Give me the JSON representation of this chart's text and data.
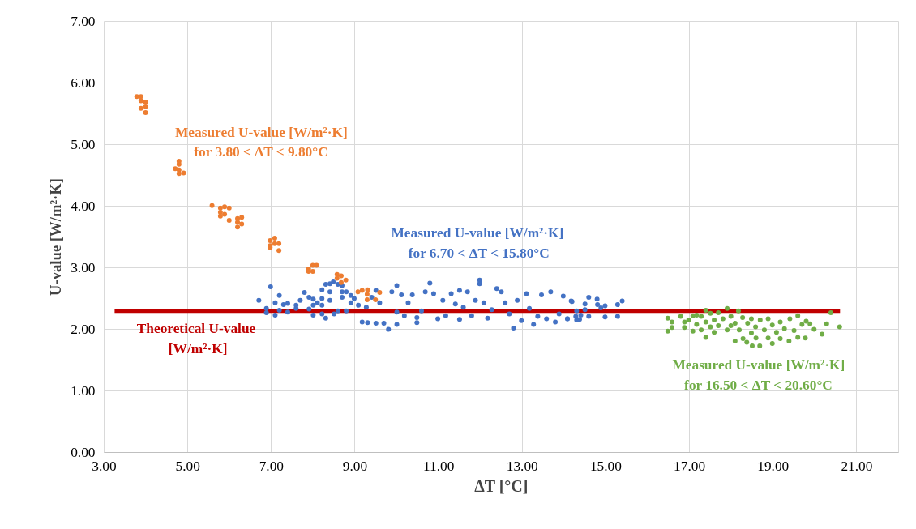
{
  "chart_data": {
    "type": "scatter",
    "xlabel": "ΔT [°C]",
    "ylabel": "U-value [W/m²·K]",
    "xlim": [
      3,
      22
    ],
    "ylim": [
      0,
      7
    ],
    "xticks": [
      {
        "value": 3,
        "label": "3.00"
      },
      {
        "value": 5,
        "label": "5.00"
      },
      {
        "value": 7,
        "label": "7.00"
      },
      {
        "value": 9,
        "label": "9.00"
      },
      {
        "value": 11,
        "label": "11.00"
      },
      {
        "value": 13,
        "label": "13.00"
      },
      {
        "value": 15,
        "label": "15.00"
      },
      {
        "value": 17,
        "label": "17.00"
      },
      {
        "value": 19,
        "label": "19.00"
      },
      {
        "value": 21,
        "label": "21.00"
      }
    ],
    "yticks": [
      {
        "value": 0,
        "label": "0.00"
      },
      {
        "value": 1,
        "label": "1.00"
      },
      {
        "value": 2,
        "label": "2.00"
      },
      {
        "value": 3,
        "label": "3.00"
      },
      {
        "value": 4,
        "label": "4.00"
      },
      {
        "value": 5,
        "label": "5.00"
      },
      {
        "value": 6,
        "label": "6.00"
      },
      {
        "value": 7,
        "label": "7.00"
      }
    ],
    "grid": true,
    "legend": false,
    "marker": "circle",
    "series": [
      {
        "type": "line",
        "marker": "none",
        "name": "Theoretical  U-value\n[W/m²·K]",
        "color": "#c00000",
        "x": [
          3.25,
          20.6
        ],
        "values": [
          2.3,
          2.3
        ]
      },
      {
        "color": "#4472c4",
        "name": "Measured U-value  [W/m²·K]\nfor 6.70 < ΔT < 15.80°C",
        "x": [
          6.7,
          6.88,
          6.88,
          6.98,
          7.09,
          7.09,
          7.19,
          7.19,
          7.29,
          7.39,
          7.39,
          7.59,
          7.59,
          7.69,
          7.79,
          7.9,
          7.9,
          8.0,
          8.0,
          8.0,
          8.1,
          8.21,
          8.21,
          8.21,
          8.21,
          8.3,
          8.3,
          8.4,
          8.4,
          8.4,
          8.48,
          8.5,
          8.59,
          8.59,
          8.69,
          8.69,
          8.69,
          8.79,
          8.79,
          8.9,
          8.9,
          8.98,
          9.08,
          9.17,
          9.27,
          9.3,
          9.4,
          9.5,
          9.5,
          9.59,
          9.69,
          9.8,
          9.88,
          10.0,
          10.0,
          10.0,
          10.11,
          10.18,
          10.27,
          10.37,
          10.48,
          10.48,
          10.59,
          10.68,
          10.79,
          10.88,
          10.98,
          11.1,
          11.17,
          11.3,
          11.4,
          11.5,
          11.5,
          11.59,
          11.69,
          11.79,
          11.88,
          11.98,
          11.98,
          12.08,
          12.17,
          12.27,
          12.39,
          12.5,
          12.59,
          12.69,
          12.79,
          12.88,
          12.98,
          13.1,
          13.17,
          13.27,
          13.37,
          13.46,
          13.58,
          13.68,
          13.79,
          13.88,
          13.98,
          14.08,
          14.19,
          14.28,
          14.37,
          14.17,
          14.08,
          14.3,
          14.3,
          14.4,
          14.5,
          14.5,
          14.59,
          14.59,
          14.79,
          14.8,
          14.88,
          14.98,
          14.98,
          15.28,
          15.28,
          15.39
        ],
        "values": [
          2.47,
          2.34,
          2.27,
          2.69,
          2.43,
          2.23,
          2.55,
          2.31,
          2.4,
          2.42,
          2.28,
          2.39,
          2.34,
          2.47,
          2.6,
          2.52,
          2.33,
          2.49,
          2.39,
          2.23,
          2.43,
          2.64,
          2.5,
          2.39,
          2.25,
          2.73,
          2.18,
          2.74,
          2.61,
          2.47,
          2.77,
          2.25,
          2.73,
          2.3,
          2.71,
          2.61,
          2.52,
          2.3,
          2.61,
          2.55,
          2.43,
          2.5,
          2.39,
          2.12,
          2.36,
          2.11,
          2.52,
          2.63,
          2.1,
          2.43,
          2.1,
          2.0,
          2.61,
          2.71,
          2.08,
          2.28,
          2.56,
          2.22,
          2.43,
          2.56,
          2.11,
          2.19,
          2.3,
          2.61,
          2.75,
          2.58,
          2.17,
          2.47,
          2.22,
          2.58,
          2.41,
          2.63,
          2.16,
          2.36,
          2.61,
          2.22,
          2.47,
          2.8,
          2.74,
          2.43,
          2.18,
          2.32,
          2.66,
          2.61,
          2.43,
          2.25,
          2.02,
          2.47,
          2.14,
          2.58,
          2.34,
          2.08,
          2.21,
          2.56,
          2.17,
          2.61,
          2.12,
          2.25,
          2.54,
          2.17,
          2.45,
          2.21,
          2.16,
          2.46,
          2.17,
          2.3,
          2.15,
          2.23,
          2.41,
          2.32,
          2.52,
          2.21,
          2.49,
          2.4,
          2.35,
          2.38,
          2.2,
          2.4,
          2.21,
          2.46
        ]
      },
      {
        "color": "#ed7d31",
        "name": "Measured U-value  [W/m²·K]\nfor  3.80 < ΔT < 9.80°C",
        "x": [
          3.78,
          3.88,
          3.88,
          3.99,
          3.88,
          3.99,
          3.99,
          4.79,
          4.79,
          4.7,
          4.79,
          4.79,
          4.9,
          5.58,
          5.78,
          5.88,
          5.99,
          5.78,
          5.88,
          5.78,
          5.99,
          6.19,
          6.29,
          6.19,
          6.29,
          6.19,
          6.97,
          7.08,
          6.97,
          7.08,
          7.18,
          7.18,
          6.97,
          7.89,
          7.99,
          8.08,
          7.99,
          7.89,
          8.57,
          8.67,
          8.78,
          8.57,
          8.67,
          9.07,
          9.17,
          9.3,
          9.29,
          9.29,
          9.59,
          9.49
        ],
        "values": [
          5.78,
          5.78,
          5.71,
          5.69,
          5.59,
          5.62,
          5.52,
          4.73,
          4.68,
          4.61,
          4.59,
          4.53,
          4.54,
          4.01,
          3.97,
          3.99,
          3.97,
          3.9,
          3.87,
          3.84,
          3.77,
          3.8,
          3.82,
          3.74,
          3.71,
          3.66,
          3.44,
          3.48,
          3.36,
          3.39,
          3.39,
          3.28,
          3.33,
          2.98,
          3.04,
          3.04,
          2.94,
          2.94,
          2.89,
          2.87,
          2.8,
          2.83,
          2.76,
          2.61,
          2.63,
          2.64,
          2.57,
          2.48,
          2.6,
          2.48
        ]
      },
      {
        "color": "#70ad47",
        "name": "Measured U-value  [W/m²·K]\nfor  16.50 < ΔT < 20.60°C",
        "x": [
          16.48,
          16.48,
          16.58,
          16.58,
          16.79,
          16.88,
          16.88,
          16.98,
          17.08,
          17.08,
          17.17,
          17.17,
          17.28,
          17.28,
          17.39,
          17.39,
          17.39,
          17.5,
          17.5,
          17.59,
          17.59,
          17.69,
          17.69,
          17.8,
          17.9,
          17.9,
          17.99,
          17.99,
          18.09,
          18.09,
          18.17,
          18.19,
          18.27,
          18.28,
          18.37,
          18.39,
          18.48,
          18.48,
          18.5,
          18.58,
          18.59,
          18.68,
          18.69,
          18.79,
          18.88,
          18.88,
          18.98,
          18.98,
          19.08,
          19.17,
          19.17,
          19.27,
          19.38,
          19.4,
          19.5,
          19.59,
          19.59,
          19.69,
          19.77,
          19.79,
          19.88,
          19.98,
          20.17,
          20.28,
          20.38,
          20.59
        ],
        "values": [
          2.18,
          1.97,
          2.12,
          2.03,
          2.21,
          2.12,
          2.03,
          2.15,
          2.22,
          1.97,
          2.23,
          2.08,
          2.21,
          1.99,
          2.31,
          2.12,
          1.87,
          2.26,
          2.04,
          2.15,
          1.95,
          2.27,
          2.06,
          2.17,
          2.34,
          1.99,
          2.21,
          2.06,
          2.1,
          1.81,
          2.3,
          1.99,
          2.19,
          1.85,
          1.79,
          2.1,
          2.17,
          1.94,
          1.73,
          2.04,
          1.86,
          1.73,
          2.15,
          1.99,
          2.17,
          1.86,
          2.07,
          1.77,
          1.95,
          2.12,
          1.85,
          2.01,
          1.81,
          2.17,
          1.98,
          2.22,
          1.87,
          2.08,
          1.86,
          2.13,
          2.09,
          2.0,
          1.92,
          2.09,
          2.27,
          2.04
        ]
      }
    ]
  }
}
